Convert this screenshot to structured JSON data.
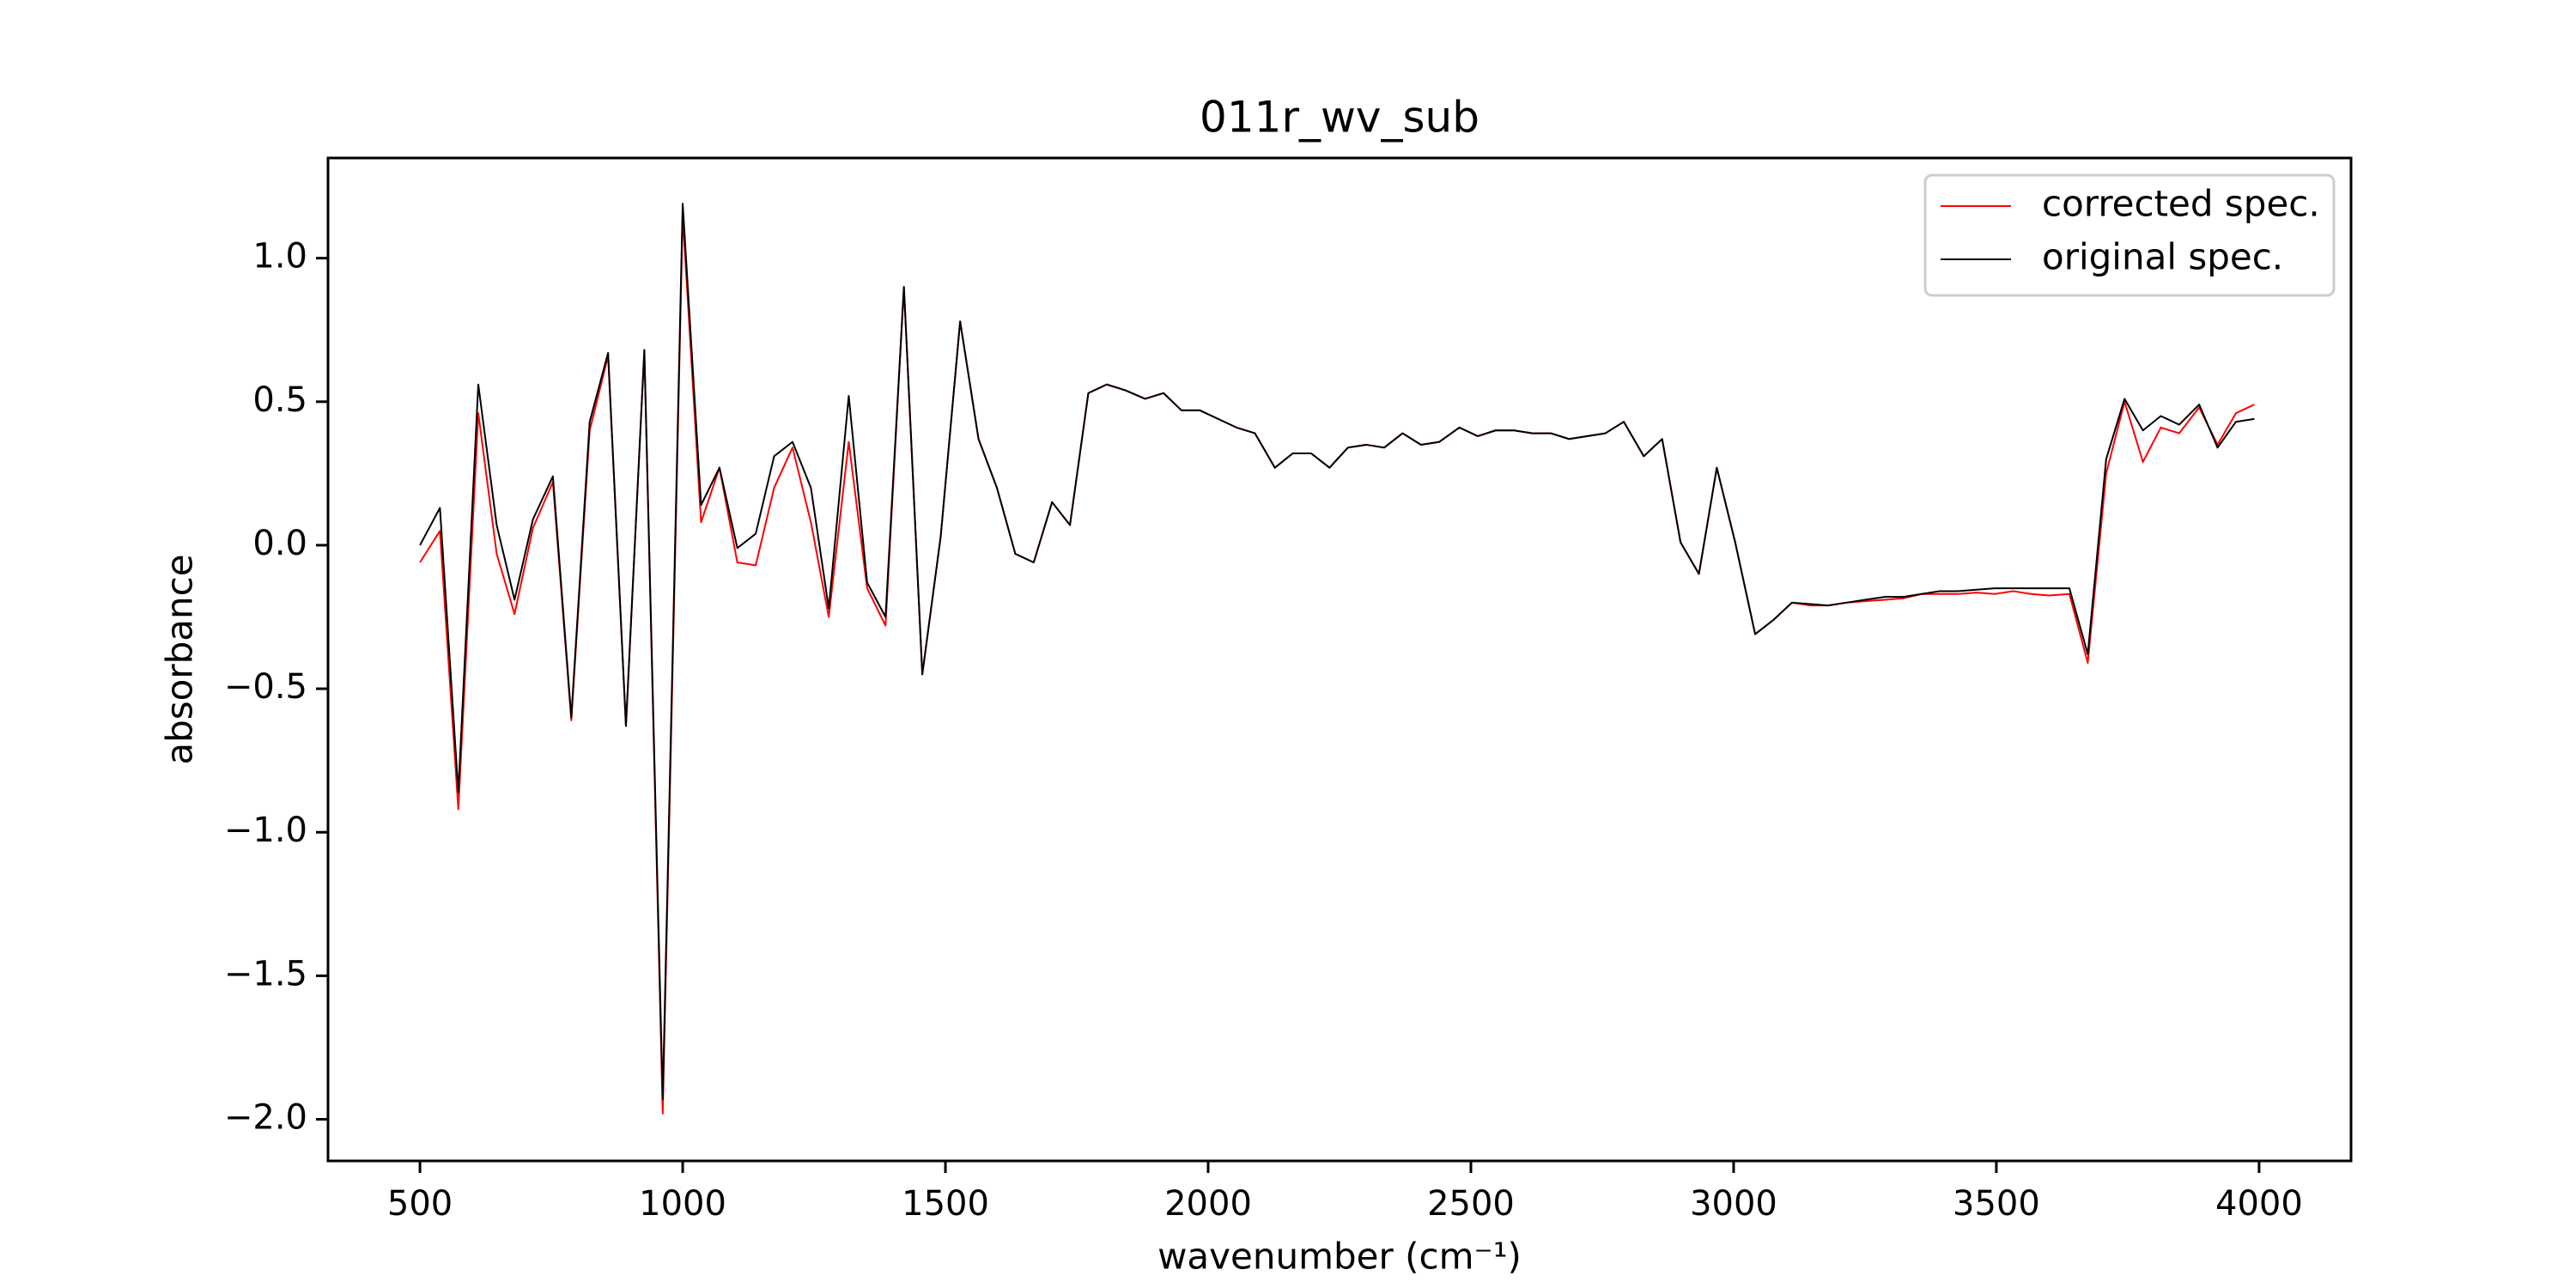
{
  "chart_data": {
    "type": "line",
    "title": "011r_wv_sub",
    "xlabel": "wavenumber (cm⁻¹)",
    "ylabel": "absorbance",
    "x": [
      500,
      538,
      573,
      611,
      646,
      680,
      715,
      753,
      788,
      823,
      858,
      892,
      927,
      962,
      1000,
      1035,
      1070,
      1104,
      1139,
      1174,
      1209,
      1244,
      1278,
      1316,
      1351,
      1386,
      1421,
      1456,
      1491,
      1528,
      1563,
      1598,
      1633,
      1668,
      1703,
      1737,
      1772,
      1807,
      1842,
      1880,
      1915,
      1949,
      1984,
      2019,
      2054,
      2089,
      2127,
      2161,
      2196,
      2231,
      2266,
      2301,
      2335,
      2370,
      2405,
      2440,
      2478,
      2513,
      2547,
      2582,
      2617,
      2652,
      2687,
      2722,
      2756,
      2791,
      2829,
      2864,
      2899,
      2934,
      2968,
      3003,
      3041,
      3076,
      3111,
      3146,
      3180,
      3215,
      3250,
      3288,
      3323,
      3358,
      3392,
      3427,
      3462,
      3497,
      3532,
      3566,
      3601,
      3639,
      3674,
      3709,
      3744,
      3779,
      3813,
      3848,
      3886,
      3921,
      3956,
      3991
    ],
    "series": [
      {
        "name": "corrected spec.",
        "color": "#ff0000",
        "values": [
          -0.06,
          0.05,
          -0.92,
          0.46,
          -0.03,
          -0.24,
          0.06,
          0.22,
          -0.61,
          0.4,
          0.66,
          -0.63,
          0.68,
          -1.98,
          1.15,
          0.08,
          0.27,
          -0.06,
          -0.07,
          0.2,
          0.34,
          0.08,
          -0.25,
          0.36,
          -0.15,
          -0.28,
          0.9,
          -0.45,
          0.03,
          0.78,
          0.37,
          0.2,
          -0.03,
          -0.06,
          0.15,
          0.07,
          0.53,
          0.56,
          0.54,
          0.51,
          0.53,
          0.47,
          0.47,
          0.44,
          0.41,
          0.39,
          0.27,
          0.32,
          0.32,
          0.27,
          0.34,
          0.35,
          0.34,
          0.39,
          0.35,
          0.36,
          0.41,
          0.38,
          0.4,
          0.4,
          0.39,
          0.39,
          0.37,
          0.38,
          0.39,
          0.43,
          0.31,
          0.37,
          0.01,
          -0.1,
          0.27,
          0.01,
          -0.31,
          -0.26,
          -0.2,
          -0.21,
          -0.21,
          -0.2,
          -0.195,
          -0.19,
          -0.185,
          -0.17,
          -0.17,
          -0.17,
          -0.165,
          -0.17,
          -0.16,
          -0.17,
          -0.175,
          -0.17,
          -0.41,
          0.25,
          0.5,
          0.29,
          0.41,
          0.39,
          0.48,
          0.35,
          0.46,
          0.49
        ]
      },
      {
        "name": "original spec.",
        "color": "#000000",
        "values": [
          0.0,
          0.13,
          -0.86,
          0.56,
          0.07,
          -0.19,
          0.09,
          0.24,
          -0.6,
          0.43,
          0.67,
          -0.63,
          0.68,
          -1.93,
          1.19,
          0.14,
          0.27,
          -0.01,
          0.04,
          0.31,
          0.36,
          0.2,
          -0.22,
          0.52,
          -0.13,
          -0.25,
          0.9,
          -0.45,
          0.03,
          0.78,
          0.37,
          0.2,
          -0.03,
          -0.06,
          0.15,
          0.07,
          0.53,
          0.56,
          0.54,
          0.51,
          0.53,
          0.47,
          0.47,
          0.44,
          0.41,
          0.39,
          0.27,
          0.32,
          0.32,
          0.27,
          0.34,
          0.35,
          0.34,
          0.39,
          0.35,
          0.36,
          0.41,
          0.38,
          0.4,
          0.4,
          0.39,
          0.39,
          0.37,
          0.38,
          0.39,
          0.43,
          0.31,
          0.37,
          0.01,
          -0.1,
          0.27,
          0.01,
          -0.31,
          -0.26,
          -0.2,
          -0.205,
          -0.21,
          -0.2,
          -0.19,
          -0.18,
          -0.18,
          -0.17,
          -0.16,
          -0.16,
          -0.155,
          -0.15,
          -0.15,
          -0.15,
          -0.15,
          -0.15,
          -0.38,
          0.3,
          0.51,
          0.4,
          0.45,
          0.42,
          0.49,
          0.34,
          0.43,
          0.44
        ]
      }
    ],
    "xlim": [
      325,
      4175
    ],
    "ylim": [
      -2.145,
      1.349
    ],
    "xticks": [
      500,
      1000,
      1500,
      2000,
      2500,
      3000,
      3500,
      4000
    ],
    "yticks": [
      {
        "value": -2.0,
        "label": "−2.0"
      },
      {
        "value": -1.5,
        "label": "−1.5"
      },
      {
        "value": -1.0,
        "label": "−1.0"
      },
      {
        "value": -0.5,
        "label": "−0.5"
      },
      {
        "value": 0.0,
        "label": "0.0"
      },
      0.5,
      {
        "value": 1.0,
        "label": "1.0"
      }
    ],
    "legend": "upper right"
  }
}
